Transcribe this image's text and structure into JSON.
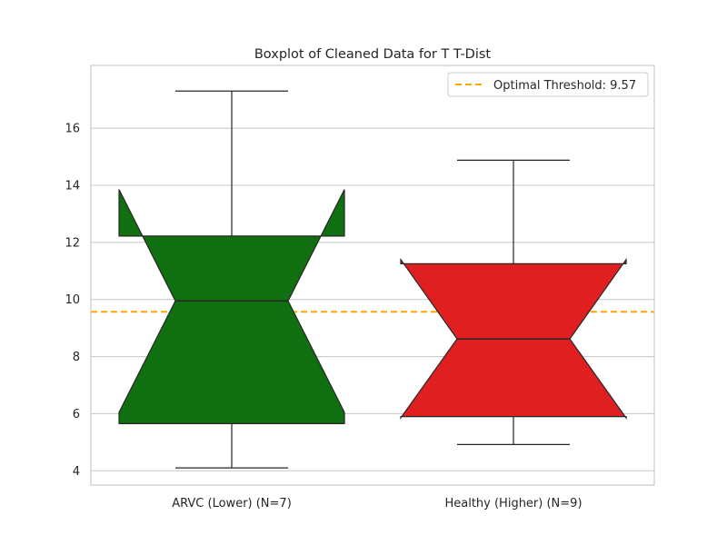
{
  "chart_data": {
    "type": "boxplot",
    "title": "Boxplot of Cleaned Data for T T-Dist",
    "xlabel": "",
    "ylabel": "",
    "ylim": [
      3.5,
      18.2
    ],
    "yticks": [
      4,
      6,
      8,
      10,
      12,
      14,
      16
    ],
    "grid": true,
    "notched": true,
    "categories": [
      "ARVC (Lower) (N=7)",
      "Healthy (Higher) (N=9)"
    ],
    "boxes": [
      {
        "category": "ARVC (Lower) (N=7)",
        "color": "#107010",
        "whisker_low": 4.1,
        "q1": 5.65,
        "median": 9.95,
        "q3": 12.22,
        "whisker_high": 17.3,
        "notch_low": 6.05,
        "notch_high": 13.85
      },
      {
        "category": "Healthy (Higher) (N=9)",
        "color": "#e02020",
        "whisker_low": 4.92,
        "q1": 5.9,
        "median": 8.62,
        "q3": 11.25,
        "whisker_high": 14.88,
        "notch_low": 5.85,
        "notch_high": 11.4
      }
    ],
    "reference_line": {
      "label": "Optimal Threshold: 9.57",
      "value": 9.57,
      "color": "#ffa500",
      "style": "dashed"
    },
    "legend_position": "top-right"
  }
}
